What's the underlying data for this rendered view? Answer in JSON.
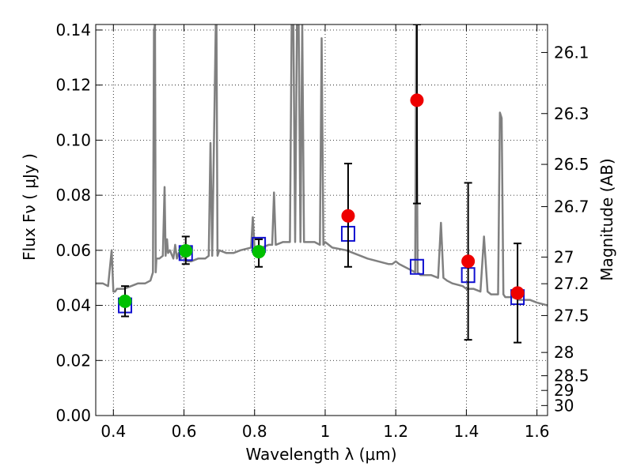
{
  "chart_data": {
    "type": "scatter",
    "xlabel": "Wavelength  λ (μm)",
    "ylabel": "Flux  Fν  ( μJy )",
    "y2label": "Magnitude (AB)",
    "xlim": [
      0.35,
      1.63
    ],
    "ylim": [
      0.0,
      0.142
    ],
    "grid": true,
    "x_ticks": [
      {
        "value": 0.4,
        "label": "0.4"
      },
      {
        "value": 0.6,
        "label": "0.6"
      },
      {
        "value": 0.8,
        "label": "0.8"
      },
      {
        "value": 1.0,
        "label": "1"
      },
      {
        "value": 1.2,
        "label": "1.2"
      },
      {
        "value": 1.4,
        "label": "1.4"
      },
      {
        "value": 1.6,
        "label": "1.6"
      }
    ],
    "y_ticks": [
      {
        "value": 0.0,
        "label": "0.00"
      },
      {
        "value": 0.02,
        "label": "0.02"
      },
      {
        "value": 0.04,
        "label": "0.04"
      },
      {
        "value": 0.06,
        "label": "0.06"
      },
      {
        "value": 0.08,
        "label": "0.08"
      },
      {
        "value": 0.1,
        "label": "0.10"
      },
      {
        "value": 0.12,
        "label": "0.12"
      },
      {
        "value": 0.14,
        "label": "0.14"
      }
    ],
    "y2_ticks": [
      {
        "mag": 26.1,
        "label": "26.1"
      },
      {
        "mag": 26.3,
        "label": "26.3"
      },
      {
        "mag": 26.5,
        "label": "26.5"
      },
      {
        "mag": 26.7,
        "label": "26.7"
      },
      {
        "mag": 27.0,
        "label": "27"
      },
      {
        "mag": 27.2,
        "label": "27.2"
      },
      {
        "mag": 27.5,
        "label": "27.5"
      },
      {
        "mag": 28.0,
        "label": "28"
      },
      {
        "mag": 28.5,
        "label": "28.5"
      },
      {
        "mag": 29.0,
        "label": "29"
      },
      {
        "mag": 30.0,
        "label": "30"
      }
    ],
    "series": [
      {
        "kind": "model-spectrum",
        "color": "#808080",
        "x": [
          0.35,
          0.37,
          0.385,
          0.395,
          0.4,
          0.405,
          0.41,
          0.43,
          0.45,
          0.47,
          0.49,
          0.505,
          0.512,
          0.515,
          0.518,
          0.52,
          0.522,
          0.526,
          0.53,
          0.54,
          0.545,
          0.548,
          0.552,
          0.555,
          0.56,
          0.57,
          0.575,
          0.58,
          0.585,
          0.59,
          0.6,
          0.61,
          0.62,
          0.64,
          0.66,
          0.67,
          0.675,
          0.68,
          0.69,
          0.692,
          0.695,
          0.7,
          0.72,
          0.74,
          0.76,
          0.79,
          0.795,
          0.8,
          0.82,
          0.84,
          0.85,
          0.855,
          0.86,
          0.88,
          0.9,
          0.905,
          0.91,
          0.915,
          0.92,
          0.925,
          0.93,
          0.935,
          0.94,
          0.95,
          0.97,
          0.985,
          0.99,
          0.995,
          1.0,
          1.02,
          1.06,
          1.08,
          1.1,
          1.12,
          1.15,
          1.18,
          1.19,
          1.2,
          1.21,
          1.24,
          1.255,
          1.258,
          1.262,
          1.27,
          1.3,
          1.32,
          1.328,
          1.335,
          1.345,
          1.36,
          1.39,
          1.4,
          1.42,
          1.44,
          1.45,
          1.46,
          1.47,
          1.49,
          1.495,
          1.5,
          1.505,
          1.51,
          1.53,
          1.55,
          1.58,
          1.6,
          1.63
        ],
        "y": [
          0.048,
          0.048,
          0.047,
          0.06,
          0.045,
          0.045,
          0.046,
          0.046,
          0.047,
          0.048,
          0.048,
          0.049,
          0.052,
          0.14,
          0.142,
          0.052,
          0.057,
          0.057,
          0.057,
          0.058,
          0.083,
          0.058,
          0.064,
          0.059,
          0.06,
          0.057,
          0.062,
          0.057,
          0.059,
          0.057,
          0.058,
          0.056,
          0.056,
          0.057,
          0.057,
          0.058,
          0.099,
          0.058,
          0.142,
          0.142,
          0.058,
          0.06,
          0.059,
          0.059,
          0.06,
          0.061,
          0.072,
          0.061,
          0.061,
          0.062,
          0.062,
          0.081,
          0.062,
          0.063,
          0.063,
          0.142,
          0.142,
          0.063,
          0.142,
          0.142,
          0.063,
          0.142,
          0.063,
          0.063,
          0.063,
          0.062,
          0.137,
          0.062,
          0.063,
          0.061,
          0.06,
          0.059,
          0.058,
          0.057,
          0.056,
          0.055,
          0.055,
          0.056,
          0.055,
          0.053,
          0.052,
          0.142,
          0.052,
          0.051,
          0.051,
          0.05,
          0.07,
          0.05,
          0.049,
          0.048,
          0.047,
          0.046,
          0.046,
          0.045,
          0.065,
          0.045,
          0.044,
          0.044,
          0.11,
          0.108,
          0.044,
          0.043,
          0.043,
          0.042,
          0.042,
          0.041,
          0.04
        ]
      },
      {
        "kind": "boxes",
        "color": "#1010d0",
        "x": [
          0.433,
          0.605,
          0.812,
          1.065,
          1.26,
          1.405,
          1.545
        ],
        "y": [
          0.04,
          0.059,
          0.062,
          0.066,
          0.054,
          0.051,
          0.043
        ]
      },
      {
        "kind": "optical-points",
        "color": "#00c000",
        "x": [
          0.433,
          0.605,
          0.812
        ],
        "y": [
          0.0415,
          0.0598,
          0.0595
        ],
        "err_lo": [
          0.036,
          0.055,
          0.054
        ],
        "err_hi": [
          0.047,
          0.065,
          0.064
        ]
      },
      {
        "kind": "nir-points",
        "color": "#ee0000",
        "x": [
          1.065,
          1.26,
          1.405,
          1.545
        ],
        "y": [
          0.0725,
          0.1145,
          0.056,
          0.0445
        ],
        "err_lo": [
          0.054,
          0.077,
          0.0275,
          0.0265
        ],
        "err_hi": [
          0.0915,
          0.142,
          0.0845,
          0.0625
        ]
      }
    ]
  }
}
